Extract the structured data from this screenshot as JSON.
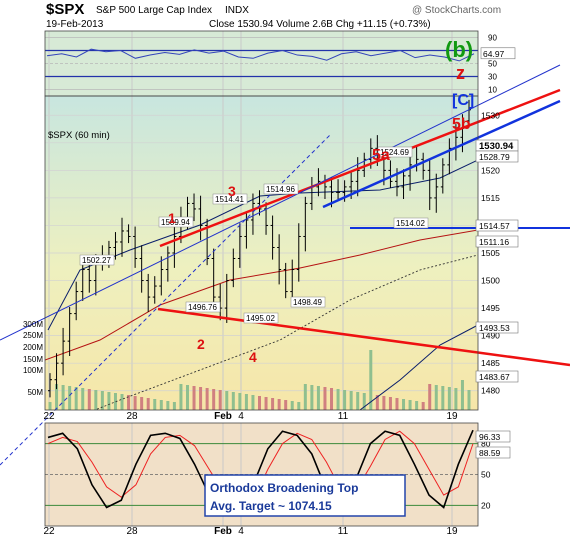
{
  "header": {
    "symbol": "$SPX",
    "name": "S&P 500 Large Cap Index",
    "exchange": "INDX",
    "date": "19-Feb-2013",
    "quote": "Close 1530.94  Volume 2.6B  Chg +11.15 (+0.73%)",
    "watermark": "@ StockCharts.com"
  },
  "colors": {
    "price_panel_bg": "#efeaa8",
    "osc_panel_bg": "#f1e0c8",
    "rsi_panel_bg": "#d7ead6",
    "trend_red": "#ee1111",
    "trend_blue": "#1133dd",
    "candle": "#000000",
    "volume_green": "#8fbf8f",
    "volume_red": "#d08080",
    "wave_red": "#dd1111",
    "wave_green": "#119911",
    "ma_navy": "#0b1f6b"
  },
  "chart_data": [
    {
      "type": "line",
      "panel": "RSI",
      "y_ticks": [
        10,
        30,
        50,
        70,
        90
      ],
      "ylim": [
        0,
        100
      ],
      "value_label": "64.97",
      "series": [
        {
          "values": [
            62,
            65,
            60,
            72,
            68,
            70,
            58,
            63,
            67,
            64,
            71,
            66,
            69,
            60,
            58,
            66,
            70,
            63,
            61,
            55,
            65,
            68,
            62,
            66,
            70,
            59,
            63,
            60,
            54,
            65
          ]
        }
      ]
    },
    {
      "type": "line",
      "panel": "price",
      "title": "$SPX (60 min)",
      "x_ticks": [
        "22",
        "28",
        "Feb",
        "4",
        "11",
        "19"
      ],
      "y_ticks": [
        1480,
        1485,
        1490,
        1495,
        1500,
        1505,
        1510,
        1515,
        1520,
        1525,
        1530
      ],
      "ylim": [
        1476.5,
        1533.5
      ],
      "price_series": [
        1482,
        1485,
        1489,
        1494,
        1498,
        1502,
        1500,
        1503,
        1504,
        1506,
        1507,
        1509,
        1508,
        1504,
        1500,
        1497,
        1499,
        1502,
        1505,
        1508,
        1511,
        1514,
        1513,
        1510,
        1504,
        1497,
        1495,
        1500,
        1504,
        1508,
        1511,
        1514,
        1513,
        1510,
        1506,
        1502,
        1498,
        1502,
        1508,
        1514,
        1517,
        1518,
        1517,
        1516,
        1516,
        1517,
        1518,
        1520,
        1522,
        1524,
        1523,
        1520,
        1518,
        1517,
        1519,
        1521,
        1522,
        1520,
        1515,
        1517,
        1521,
        1524,
        1526,
        1529,
        1531
      ],
      "price_annotations": [
        {
          "text": "1502.27",
          "value": 1502.27
        },
        {
          "text": "1509.94",
          "value": 1509.94
        },
        {
          "text": "1514.41",
          "value": 1514.41
        },
        {
          "text": "1514.96",
          "value": 1514.96
        },
        {
          "text": "1496.76",
          "value": 1496.76
        },
        {
          "text": "1495.02",
          "value": 1495.02
        },
        {
          "text": "1498.49",
          "value": 1498.49
        },
        {
          "text": "1524.69",
          "value": 1524.69
        },
        {
          "text": "1514.02",
          "value": 1514.02
        }
      ],
      "right_labels": [
        {
          "text": "1530.94",
          "value": 1530.94
        },
        {
          "text": "1528.79",
          "value": 1528.79
        },
        {
          "text": "1514.57",
          "value": 1514.57
        },
        {
          "text": "1511.16",
          "value": 1511.16
        },
        {
          "text": "1493.53",
          "value": 1493.53
        },
        {
          "text": "1483.67",
          "value": 1483.67
        }
      ],
      "volume_ticks": [
        "300M",
        "250M",
        "200M",
        "150M",
        "100M",
        "50M"
      ],
      "wave_labels": [
        {
          "text": "1",
          "color": "red"
        },
        {
          "text": "2",
          "color": "red"
        },
        {
          "text": "3",
          "color": "red"
        },
        {
          "text": "4",
          "color": "red"
        },
        {
          "text": "5a",
          "color": "red"
        },
        {
          "text": "5b",
          "color": "red"
        },
        {
          "text": "[C]",
          "color": "blue"
        },
        {
          "text": "z",
          "color": "red"
        },
        {
          "text": "(b)",
          "color": "green"
        }
      ]
    },
    {
      "type": "line",
      "panel": "stochastics",
      "y_ticks": [
        20,
        50,
        80
      ],
      "ylim": [
        0,
        100
      ],
      "series": [
        {
          "values": [
            86,
            90,
            75,
            40,
            18,
            25,
            60,
            88,
            90,
            85,
            60,
            30,
            15,
            12,
            40,
            75,
            92,
            88,
            70,
            35,
            20,
            45,
            80,
            92,
            88,
            60,
            30,
            18,
            60,
            93
          ]
        },
        {
          "values": [
            80,
            86,
            82,
            62,
            38,
            28,
            40,
            70,
            86,
            88,
            78,
            55,
            32,
            18,
            25,
            55,
            80,
            90,
            84,
            62,
            35,
            34,
            58,
            84,
            92,
            80,
            55,
            30,
            38,
            80
          ]
        }
      ],
      "value_labels": [
        "96.33",
        "88.59"
      ],
      "annotation": {
        "line1": "Orthodox Broadening Top",
        "line2": "Avg. Target ~ 1074.15"
      }
    }
  ]
}
